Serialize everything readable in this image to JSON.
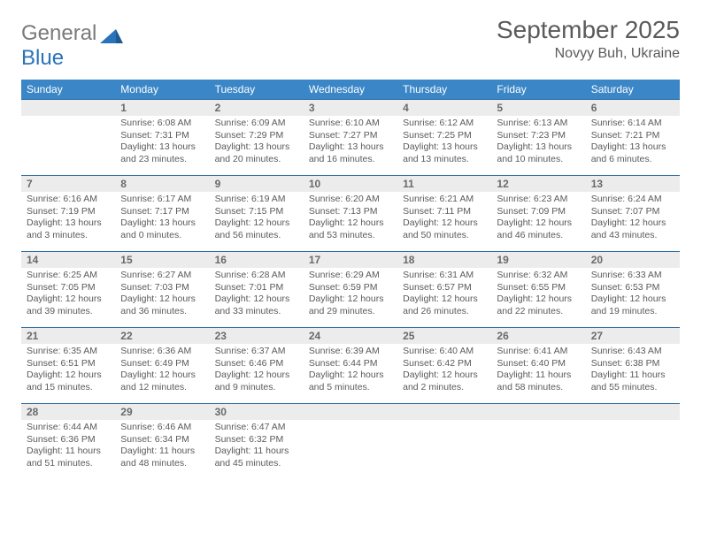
{
  "brand": {
    "part1": "General",
    "part2": "Blue"
  },
  "title": "September 2025",
  "location": "Novyy Buh, Ukraine",
  "calendar": {
    "day_headers": [
      "Sunday",
      "Monday",
      "Tuesday",
      "Wednesday",
      "Thursday",
      "Friday",
      "Saturday"
    ],
    "header_bg": "#3b86c7",
    "header_fg": "#ffffff",
    "daynum_bg": "#ececec",
    "daynum_border": "#2f6fa8",
    "text_color": "#5a5a5a",
    "title_fontsize": 28,
    "location_fontsize": 16,
    "header_fontsize": 12,
    "daynum_fontsize": 12,
    "cell_fontsize": 10.5,
    "first_weekday_index": 1,
    "days": [
      {
        "n": 1,
        "sunrise": "6:08 AM",
        "sunset": "7:31 PM",
        "daylight": "13 hours and 23 minutes."
      },
      {
        "n": 2,
        "sunrise": "6:09 AM",
        "sunset": "7:29 PM",
        "daylight": "13 hours and 20 minutes."
      },
      {
        "n": 3,
        "sunrise": "6:10 AM",
        "sunset": "7:27 PM",
        "daylight": "13 hours and 16 minutes."
      },
      {
        "n": 4,
        "sunrise": "6:12 AM",
        "sunset": "7:25 PM",
        "daylight": "13 hours and 13 minutes."
      },
      {
        "n": 5,
        "sunrise": "6:13 AM",
        "sunset": "7:23 PM",
        "daylight": "13 hours and 10 minutes."
      },
      {
        "n": 6,
        "sunrise": "6:14 AM",
        "sunset": "7:21 PM",
        "daylight": "13 hours and 6 minutes."
      },
      {
        "n": 7,
        "sunrise": "6:16 AM",
        "sunset": "7:19 PM",
        "daylight": "13 hours and 3 minutes."
      },
      {
        "n": 8,
        "sunrise": "6:17 AM",
        "sunset": "7:17 PM",
        "daylight": "13 hours and 0 minutes."
      },
      {
        "n": 9,
        "sunrise": "6:19 AM",
        "sunset": "7:15 PM",
        "daylight": "12 hours and 56 minutes."
      },
      {
        "n": 10,
        "sunrise": "6:20 AM",
        "sunset": "7:13 PM",
        "daylight": "12 hours and 53 minutes."
      },
      {
        "n": 11,
        "sunrise": "6:21 AM",
        "sunset": "7:11 PM",
        "daylight": "12 hours and 50 minutes."
      },
      {
        "n": 12,
        "sunrise": "6:23 AM",
        "sunset": "7:09 PM",
        "daylight": "12 hours and 46 minutes."
      },
      {
        "n": 13,
        "sunrise": "6:24 AM",
        "sunset": "7:07 PM",
        "daylight": "12 hours and 43 minutes."
      },
      {
        "n": 14,
        "sunrise": "6:25 AM",
        "sunset": "7:05 PM",
        "daylight": "12 hours and 39 minutes."
      },
      {
        "n": 15,
        "sunrise": "6:27 AM",
        "sunset": "7:03 PM",
        "daylight": "12 hours and 36 minutes."
      },
      {
        "n": 16,
        "sunrise": "6:28 AM",
        "sunset": "7:01 PM",
        "daylight": "12 hours and 33 minutes."
      },
      {
        "n": 17,
        "sunrise": "6:29 AM",
        "sunset": "6:59 PM",
        "daylight": "12 hours and 29 minutes."
      },
      {
        "n": 18,
        "sunrise": "6:31 AM",
        "sunset": "6:57 PM",
        "daylight": "12 hours and 26 minutes."
      },
      {
        "n": 19,
        "sunrise": "6:32 AM",
        "sunset": "6:55 PM",
        "daylight": "12 hours and 22 minutes."
      },
      {
        "n": 20,
        "sunrise": "6:33 AM",
        "sunset": "6:53 PM",
        "daylight": "12 hours and 19 minutes."
      },
      {
        "n": 21,
        "sunrise": "6:35 AM",
        "sunset": "6:51 PM",
        "daylight": "12 hours and 15 minutes."
      },
      {
        "n": 22,
        "sunrise": "6:36 AM",
        "sunset": "6:49 PM",
        "daylight": "12 hours and 12 minutes."
      },
      {
        "n": 23,
        "sunrise": "6:37 AM",
        "sunset": "6:46 PM",
        "daylight": "12 hours and 9 minutes."
      },
      {
        "n": 24,
        "sunrise": "6:39 AM",
        "sunset": "6:44 PM",
        "daylight": "12 hours and 5 minutes."
      },
      {
        "n": 25,
        "sunrise": "6:40 AM",
        "sunset": "6:42 PM",
        "daylight": "12 hours and 2 minutes."
      },
      {
        "n": 26,
        "sunrise": "6:41 AM",
        "sunset": "6:40 PM",
        "daylight": "11 hours and 58 minutes."
      },
      {
        "n": 27,
        "sunrise": "6:43 AM",
        "sunset": "6:38 PM",
        "daylight": "11 hours and 55 minutes."
      },
      {
        "n": 28,
        "sunrise": "6:44 AM",
        "sunset": "6:36 PM",
        "daylight": "11 hours and 51 minutes."
      },
      {
        "n": 29,
        "sunrise": "6:46 AM",
        "sunset": "6:34 PM",
        "daylight": "11 hours and 48 minutes."
      },
      {
        "n": 30,
        "sunrise": "6:47 AM",
        "sunset": "6:32 PM",
        "daylight": "11 hours and 45 minutes."
      }
    ]
  },
  "labels": {
    "sunrise": "Sunrise:",
    "sunset": "Sunset:",
    "daylight": "Daylight:"
  }
}
